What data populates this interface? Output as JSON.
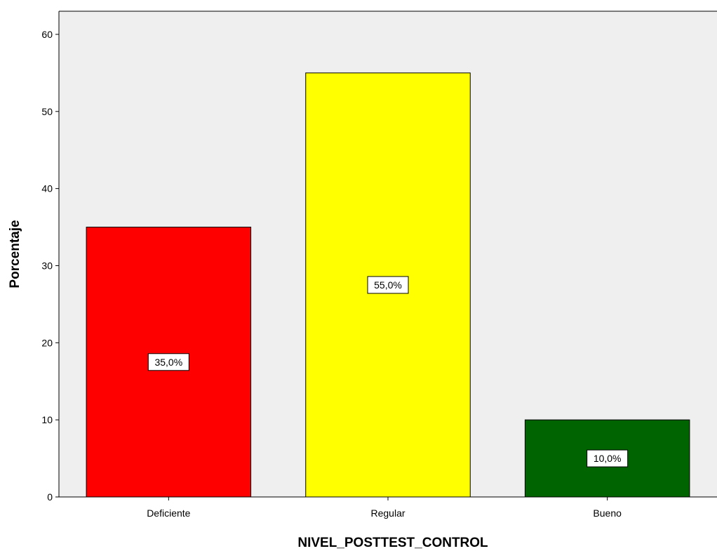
{
  "chart_data": {
    "type": "bar",
    "categories": [
      "Deficiente",
      "Regular",
      "Bueno"
    ],
    "values": [
      35,
      55,
      10
    ],
    "data_labels": [
      "35,0%",
      "55,0%",
      "10,0%"
    ],
    "bar_colors": [
      "#ff0000",
      "#ffff00",
      "#006400"
    ],
    "plot_background": "#efefef",
    "xlabel": "NIVEL_POSTTEST_CONTROL",
    "ylabel": "Porcentaje",
    "ylim": [
      0,
      63
    ],
    "yticks": [
      0,
      10,
      20,
      30,
      40,
      50,
      60
    ],
    "grid": false,
    "legend": "none"
  }
}
